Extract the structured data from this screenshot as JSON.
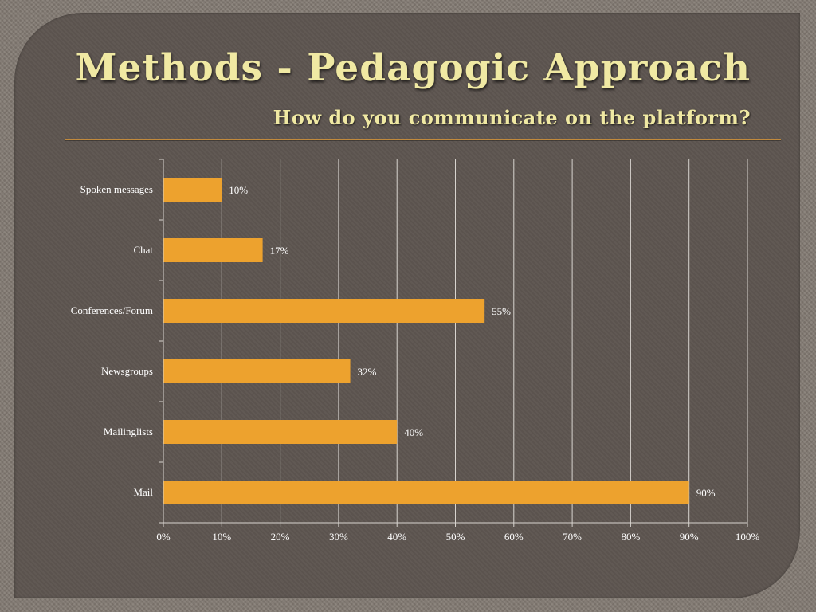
{
  "slide": {
    "title": "Methods - Pedagogic Approach",
    "subtitle": "How do you communicate on the platform?"
  },
  "colors": {
    "bar": "#eda22e",
    "text": "#f0e9a3",
    "divider": "#c28a3c",
    "grid": "#d8d4cf"
  },
  "chart_data": {
    "type": "bar",
    "orientation": "horizontal",
    "categories": [
      "Spoken messages",
      "Chat",
      "Conferences/Forum",
      "Newsgroups",
      "Mailinglists",
      "Mail"
    ],
    "values": [
      10,
      17,
      55,
      32,
      40,
      90
    ],
    "value_labels": [
      "10%",
      "17%",
      "55%",
      "32%",
      "40%",
      "90%"
    ],
    "xlim": [
      0,
      100
    ],
    "xticks": [
      0,
      10,
      20,
      30,
      40,
      50,
      60,
      70,
      80,
      90,
      100
    ],
    "xtick_labels": [
      "0%",
      "10%",
      "20%",
      "30%",
      "40%",
      "50%",
      "60%",
      "70%",
      "80%",
      "90%",
      "100%"
    ],
    "grid": true,
    "legend": "none"
  }
}
